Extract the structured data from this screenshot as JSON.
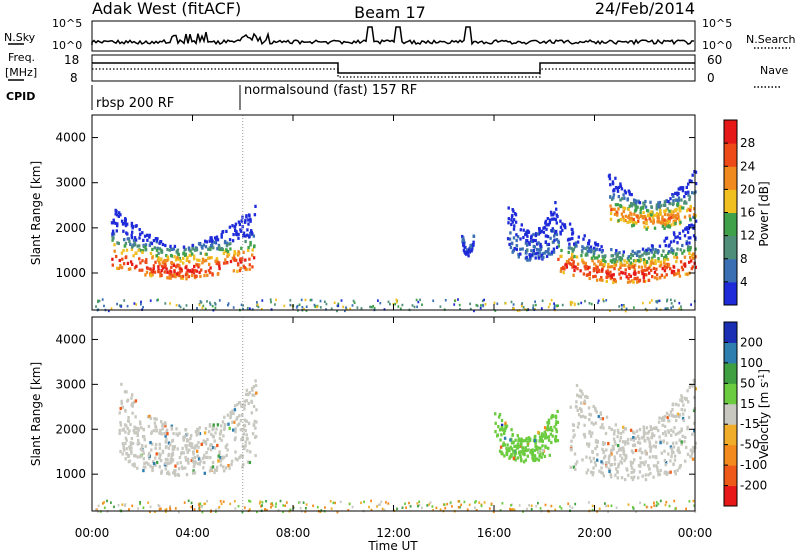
{
  "header": {
    "station": "Adak West (fitACF)",
    "beam": "Beam 17",
    "date": "24/Feb/2014"
  },
  "top_panels": {
    "nsky": {
      "label": "N.Sky",
      "left_ticks": [
        "10^5",
        "10^0"
      ],
      "right_label": "N.Search",
      "right_ticks": [
        "10^5",
        "10^0"
      ]
    },
    "freq": {
      "label_line1": "Freq.",
      "label_line2": "[MHz]",
      "left_ticks": [
        "18",
        "8"
      ],
      "right_label": "Nave",
      "right_ticks": [
        "60",
        "0"
      ]
    },
    "cpid": {
      "label": "CPID",
      "segments": [
        "rbsp 200 RF",
        "normalsound (fast) 157 RF"
      ]
    }
  },
  "colors": {
    "power": [
      "#1f2bd9",
      "#3b6fb3",
      "#4f8f7a",
      "#3fa14a",
      "#f0c020",
      "#f08a1e",
      "#ee4a18",
      "#e61818"
    ],
    "velocity": [
      "#e81818",
      "#f05a18",
      "#f28a1e",
      "#f0ad2a",
      "#c8c8c0",
      "#6ccc40",
      "#3ea040",
      "#2e7fb0",
      "#1a2fb3"
    ]
  },
  "chart_data": [
    {
      "type": "heatmap",
      "title": "Power",
      "xlabel": "",
      "ylabel": "Slant Range [km]",
      "xlim": [
        "00:00",
        "24:00"
      ],
      "ylim": [
        180,
        4500
      ],
      "y_ticks": [
        1000,
        2000,
        3000,
        4000
      ],
      "colorbar": {
        "label": "Power [dB]",
        "ticks": [
          4,
          8,
          12,
          16,
          20,
          24,
          28
        ],
        "range": [
          0,
          32
        ]
      },
      "echo_regions": [
        {
          "time_start": "00:45",
          "time_end": "06:30",
          "range_min": 900,
          "range_max": 2300,
          "peak_power": 30
        },
        {
          "time_start": "18:30",
          "time_end": "24:00",
          "range_min": 800,
          "range_max": 2100,
          "peak_power": 30
        },
        {
          "time_start": "20:30",
          "time_end": "24:00",
          "range_min": 2000,
          "range_max": 3100,
          "peak_power": 24
        },
        {
          "time_start": "16:30",
          "time_end": "18:30",
          "range_min": 1300,
          "range_max": 2500,
          "peak_power": 6
        },
        {
          "time_start": "14:40",
          "time_end": "15:10",
          "range_min": 1400,
          "range_max": 1700,
          "peak_power": 6
        }
      ]
    },
    {
      "type": "heatmap",
      "title": "Velocity",
      "xlabel": "Time UT",
      "ylabel": "Slant Range [km]",
      "xlim": [
        "00:00",
        "24:00"
      ],
      "x_ticks": [
        "00:00",
        "04:00",
        "08:00",
        "12:00",
        "16:00",
        "20:00",
        "00:00"
      ],
      "ylim": [
        180,
        4500
      ],
      "y_ticks": [
        1000,
        2000,
        3000,
        4000
      ],
      "colorbar": {
        "label": "Velocity [m s^-1]",
        "ticks": [
          200,
          100,
          50,
          15,
          -15,
          -50,
          -100,
          -200
        ],
        "range": [
          -250,
          250
        ]
      },
      "echo_regions": [
        {
          "time_start": "01:00",
          "time_end": "06:30",
          "range_min": 1000,
          "range_max": 2900,
          "velocity": 0
        },
        {
          "time_start": "19:00",
          "time_end": "24:00",
          "range_min": 900,
          "range_max": 3000,
          "velocity": 0
        },
        {
          "time_start": "16:00",
          "time_end": "18:30",
          "range_min": 1300,
          "range_max": 2300,
          "velocity": 40
        }
      ]
    }
  ]
}
